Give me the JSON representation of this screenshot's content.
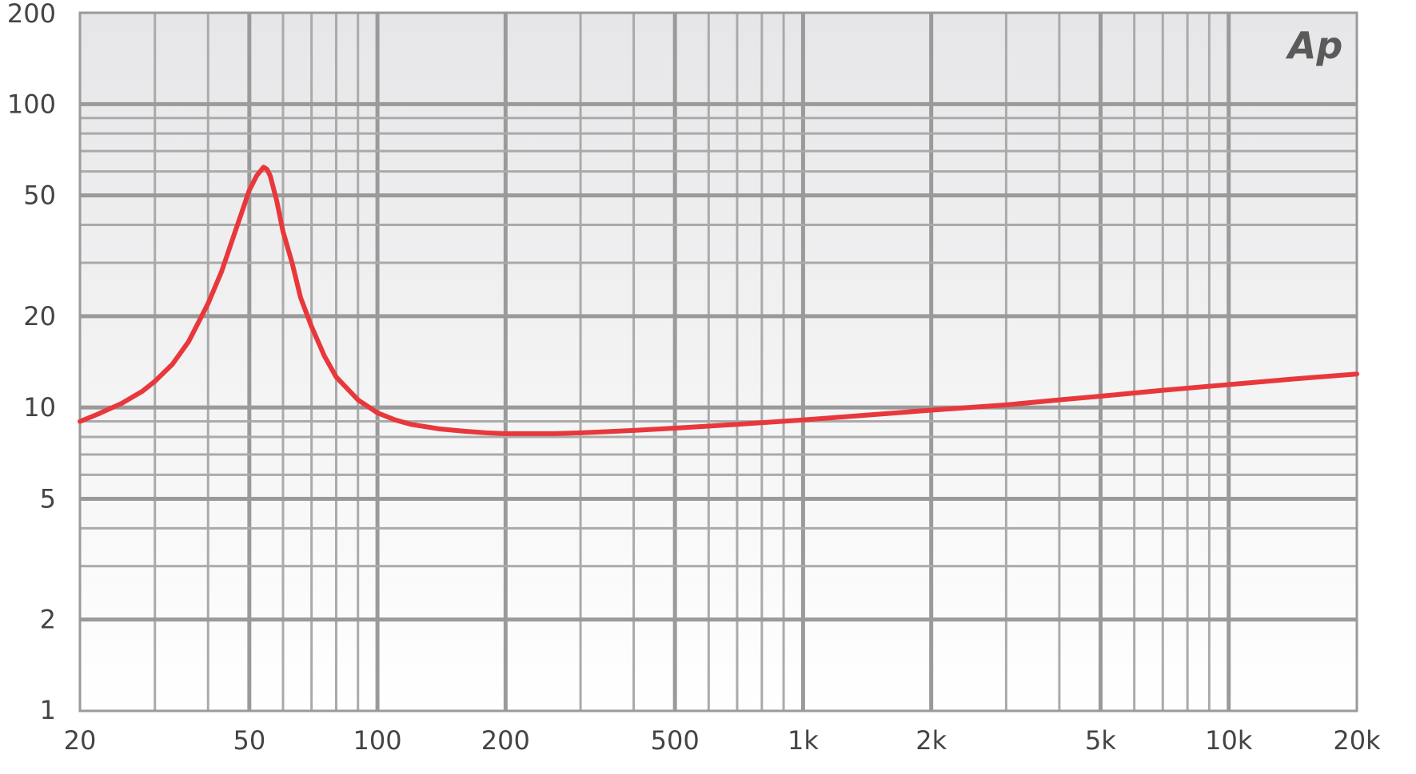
{
  "chart_data": {
    "type": "line",
    "title": "",
    "xlabel": "",
    "ylabel": "",
    "xscale": "log",
    "yscale": "log",
    "xlim": [
      20,
      20000
    ],
    "ylim": [
      1,
      200
    ],
    "grid": true,
    "legend": "none",
    "x_ticks": [
      {
        "value": 20,
        "label": "20"
      },
      {
        "value": 50,
        "label": "50"
      },
      {
        "value": 100,
        "label": "100"
      },
      {
        "value": 200,
        "label": "200"
      },
      {
        "value": 500,
        "label": "500"
      },
      {
        "value": 1000,
        "label": "1k"
      },
      {
        "value": 2000,
        "label": "2k"
      },
      {
        "value": 5000,
        "label": "5k"
      },
      {
        "value": 10000,
        "label": "10k"
      },
      {
        "value": 20000,
        "label": "20k"
      }
    ],
    "y_ticks": [
      {
        "value": 1,
        "label": "1"
      },
      {
        "value": 2,
        "label": "2"
      },
      {
        "value": 5,
        "label": "5"
      },
      {
        "value": 10,
        "label": "10"
      },
      {
        "value": 20,
        "label": "20"
      },
      {
        "value": 50,
        "label": "50"
      },
      {
        "value": 100,
        "label": "100"
      },
      {
        "value": 200,
        "label": "200"
      }
    ],
    "series": [
      {
        "color": "#e8383b",
        "x": [
          20,
          22,
          25,
          28,
          30,
          33,
          36,
          40,
          43,
          46,
          48,
          50,
          52,
          54,
          55,
          56,
          58,
          60,
          63,
          66,
          70,
          75,
          80,
          90,
          100,
          110,
          120,
          140,
          160,
          180,
          200,
          230,
          260,
          300,
          400,
          500,
          700,
          1000,
          1500,
          2000,
          3000,
          4000,
          5000,
          7000,
          10000,
          14000,
          20000
        ],
        "y": [
          9.0,
          9.5,
          10.3,
          11.3,
          12.2,
          13.9,
          16.5,
          22,
          28,
          37,
          44,
          52,
          58,
          62,
          61,
          58,
          48,
          38,
          30,
          23,
          18.5,
          14.8,
          12.6,
          10.6,
          9.6,
          9.1,
          8.8,
          8.5,
          8.35,
          8.25,
          8.2,
          8.2,
          8.2,
          8.25,
          8.4,
          8.55,
          8.8,
          9.1,
          9.5,
          9.8,
          10.2,
          10.6,
          10.9,
          11.4,
          11.9,
          12.4,
          12.9
        ]
      }
    ]
  },
  "logo": {
    "label": "Ap"
  }
}
